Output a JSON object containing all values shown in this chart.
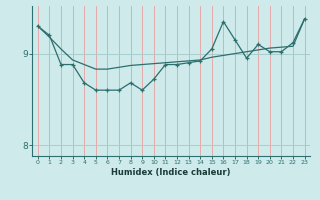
{
  "xlabel": "Humidex (Indice chaleur)",
  "bg_color": "#ceeaea",
  "line_color": "#2d6e6e",
  "grid_color_v": "#e8a0a0",
  "grid_color_h": "#a8cccc",
  "x": [
    0,
    1,
    2,
    3,
    4,
    5,
    6,
    7,
    8,
    9,
    10,
    11,
    12,
    13,
    14,
    15,
    16,
    17,
    18,
    19,
    20,
    21,
    22,
    23
  ],
  "line1_y": [
    9.3,
    9.18,
    9.05,
    8.93,
    8.88,
    8.83,
    8.83,
    8.85,
    8.87,
    8.88,
    8.89,
    8.9,
    8.91,
    8.92,
    8.93,
    8.96,
    8.98,
    9.0,
    9.02,
    9.04,
    9.06,
    9.07,
    9.08,
    9.38
  ],
  "line2_y": [
    9.3,
    9.2,
    8.88,
    8.88,
    8.68,
    8.6,
    8.6,
    8.6,
    8.68,
    8.6,
    8.72,
    8.88,
    8.88,
    8.9,
    8.92,
    9.05,
    9.35,
    9.15,
    8.95,
    9.1,
    9.02,
    9.02,
    9.12,
    9.38
  ],
  "yticks": [
    8,
    9
  ],
  "ylim": [
    7.88,
    9.52
  ],
  "xlim": [
    -0.5,
    23.5
  ]
}
